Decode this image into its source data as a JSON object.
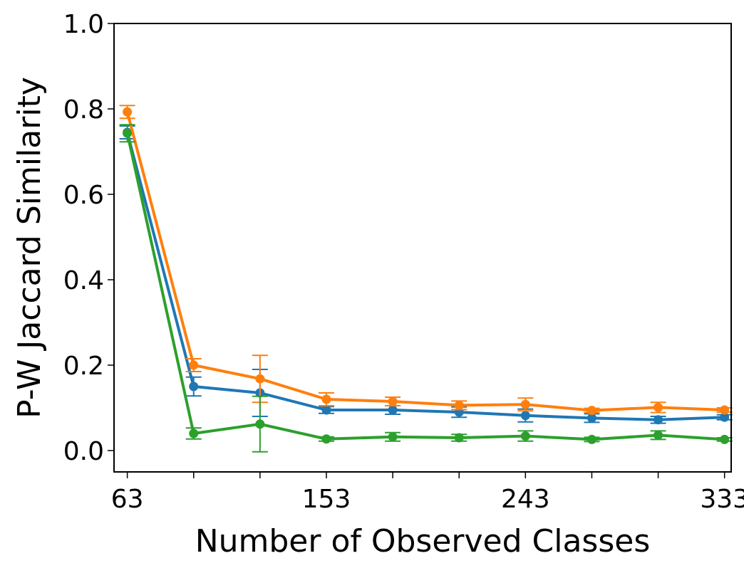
{
  "chart_data": {
    "type": "line",
    "xlabel": "Number of Observed Classes",
    "ylabel": "P-W Jaccard Similarity",
    "xlim": [
      57,
      336
    ],
    "ylim": [
      -0.05,
      1.0
    ],
    "x": [
      63,
      93,
      123,
      153,
      183,
      213,
      243,
      273,
      303,
      333
    ],
    "xticks": [
      63,
      153,
      243,
      333
    ],
    "minor_xticks": [
      93,
      123,
      183,
      213,
      273,
      303
    ],
    "yticks": [
      0.0,
      0.2,
      0.4,
      0.6,
      0.8,
      1.0
    ],
    "ytick_labels": [
      "0.0",
      "0.2",
      "0.4",
      "0.6",
      "0.8",
      "1.0"
    ],
    "grid": false,
    "legend": "none",
    "series": [
      {
        "color": "#1f77b4",
        "values": [
          0.745,
          0.15,
          0.135,
          0.095,
          0.095,
          0.09,
          0.082,
          0.076,
          0.072,
          0.078
        ],
        "errors": [
          0.015,
          0.022,
          0.055,
          0.008,
          0.01,
          0.012,
          0.015,
          0.01,
          0.008,
          0.006
        ]
      },
      {
        "color": "#ff7f0e",
        "values": [
          0.793,
          0.2,
          0.168,
          0.12,
          0.115,
          0.106,
          0.108,
          0.094,
          0.101,
          0.095
        ],
        "errors": [
          0.015,
          0.015,
          0.055,
          0.015,
          0.01,
          0.01,
          0.015,
          0.005,
          0.012,
          0.005
        ]
      },
      {
        "color": "#2ca02c",
        "values": [
          0.743,
          0.04,
          0.062,
          0.027,
          0.032,
          0.03,
          0.034,
          0.026,
          0.036,
          0.026
        ],
        "errors": [
          0.02,
          0.013,
          0.065,
          0.005,
          0.01,
          0.008,
          0.012,
          0.005,
          0.01,
          0.004
        ]
      }
    ]
  }
}
